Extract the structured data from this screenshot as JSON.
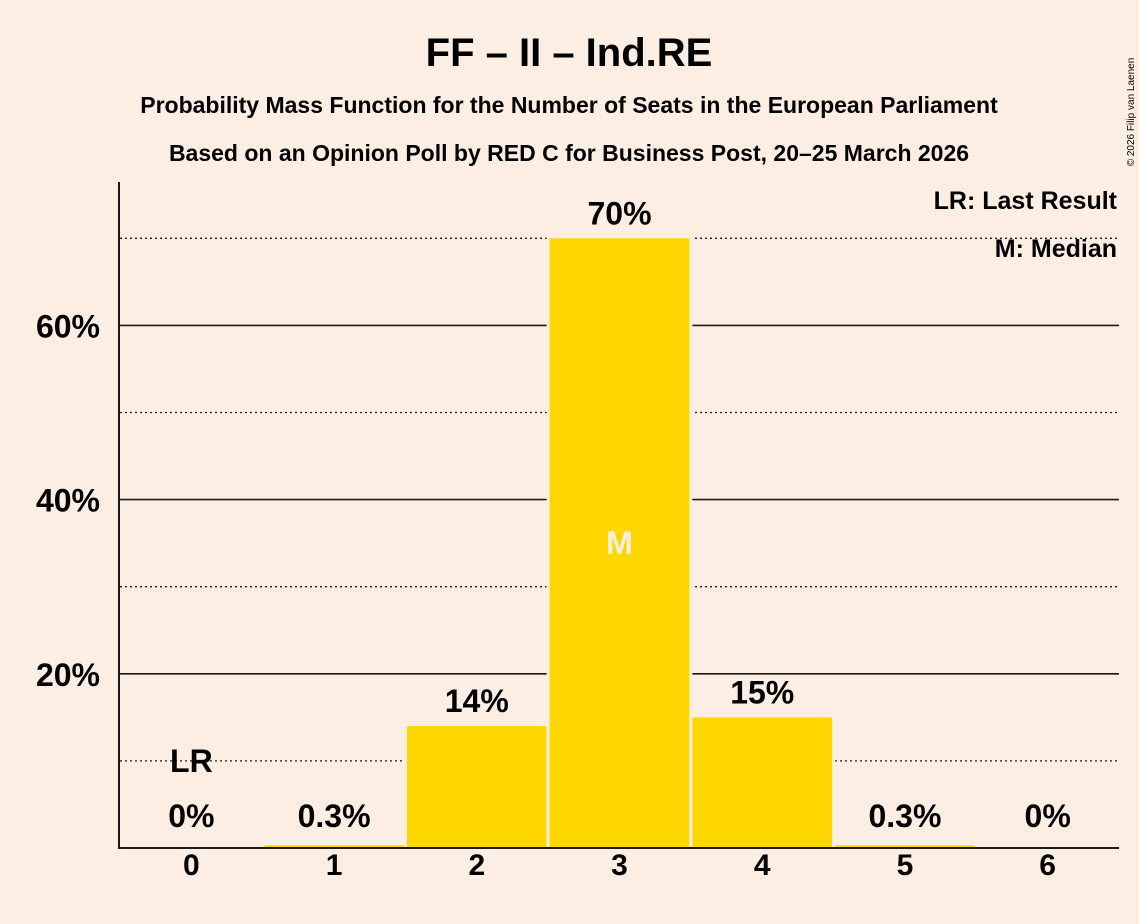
{
  "chart_data": {
    "type": "bar",
    "title": "FF – II – Ind.RE",
    "subtitle": "Probability Mass Function for the Number of Seats in the European Parliament",
    "subtitle2": "Based on an Opinion Poll by RED C for Business Post, 20–25 March 2026",
    "categories": [
      "0",
      "1",
      "2",
      "3",
      "4",
      "5",
      "6"
    ],
    "values": [
      0,
      0.3,
      14,
      70,
      15,
      0.3,
      0
    ],
    "value_labels": [
      "0%",
      "0.3%",
      "14%",
      "70%",
      "15%",
      "0.3%",
      "0%"
    ],
    "ylim": [
      0,
      76
    ],
    "yticks": [
      20,
      40,
      60
    ],
    "ytick_labels": [
      "20%",
      "40%",
      "60%"
    ],
    "dotted_grid": [
      10,
      30,
      50,
      70
    ],
    "last_result_index": 0,
    "last_result_marker": "LR",
    "median_index": 3,
    "median_marker": "M",
    "bar_color": "#FFD700",
    "legend": [
      "LR: Last Result",
      "M: Median"
    ],
    "legend_position": "top-right",
    "copyright": "© 2026 Filip van Laenen"
  }
}
